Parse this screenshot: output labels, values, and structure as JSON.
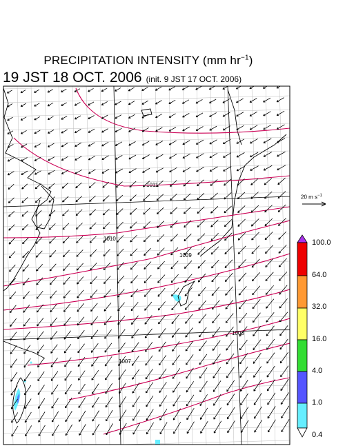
{
  "title": {
    "main": "PRECIPITATION INTENSITY (mm hr",
    "unit_exp": "−1",
    "unit_close": ")"
  },
  "subtitle": {
    "valid_time": "19 JST 18 OCT. 2006",
    "init": "(init. 9 JST 17 OCT. 2006)"
  },
  "vector_reference": {
    "label": "20 m s",
    "exp": "−1"
  },
  "colorbar": {
    "labels": [
      "100.0",
      "64.0",
      "32.0",
      "16.0",
      "4.0",
      "1.0",
      "0.4"
    ],
    "colors": [
      "#ee0000",
      "#ff9933",
      "#ffff66",
      "#33dd33",
      "#5555ff",
      "#66eeff"
    ],
    "over_color": "#aa33ee"
  },
  "isobars": {
    "labels": [
      "1011",
      "1010",
      "1009",
      "1008",
      "1007"
    ],
    "color": "#cc0055"
  },
  "map_colors": {
    "coast": "#000000",
    "grid": "#888888",
    "arrow": "#000000",
    "rain_light": "#66eeff",
    "rain_medium": "#5588ff"
  }
}
